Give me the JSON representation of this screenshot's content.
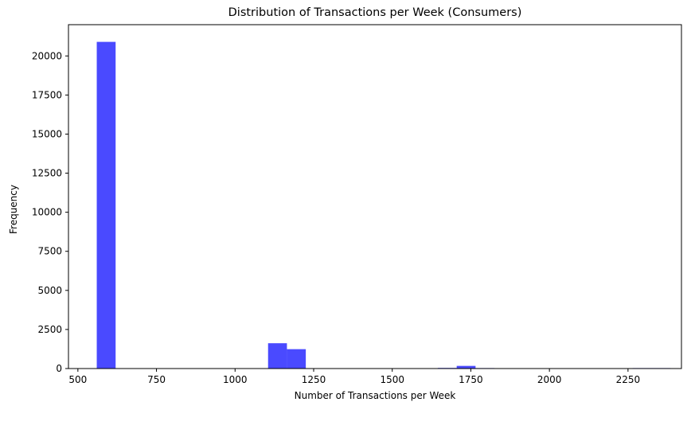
{
  "chart_data": {
    "type": "bar",
    "title": "Distribution of Transactions per Week (Consumers)",
    "xlabel": "Number of Transactions per Week",
    "ylabel": "Frequency",
    "xlim": [
      470,
      2420
    ],
    "ylim": [
      0,
      22000
    ],
    "x_ticks": [
      500,
      750,
      1000,
      1250,
      1500,
      1750,
      2000,
      2250
    ],
    "y_ticks": [
      0,
      2500,
      5000,
      7500,
      10000,
      12500,
      15000,
      17500,
      20000
    ],
    "grid": false,
    "bar_color": "#4a4aff",
    "bins": [
      {
        "x0": 560,
        "x1": 620,
        "count": 20900
      },
      {
        "x0": 1105,
        "x1": 1165,
        "count": 1620
      },
      {
        "x0": 1165,
        "x1": 1225,
        "count": 1240
      },
      {
        "x0": 1645,
        "x1": 1705,
        "count": 40
      },
      {
        "x0": 1705,
        "x1": 1765,
        "count": 170
      },
      {
        "x0": 1765,
        "x1": 1825,
        "count": 30
      },
      {
        "x0": 2265,
        "x1": 2325,
        "count": 30
      },
      {
        "x0": 2325,
        "x1": 2385,
        "count": 30
      }
    ]
  }
}
